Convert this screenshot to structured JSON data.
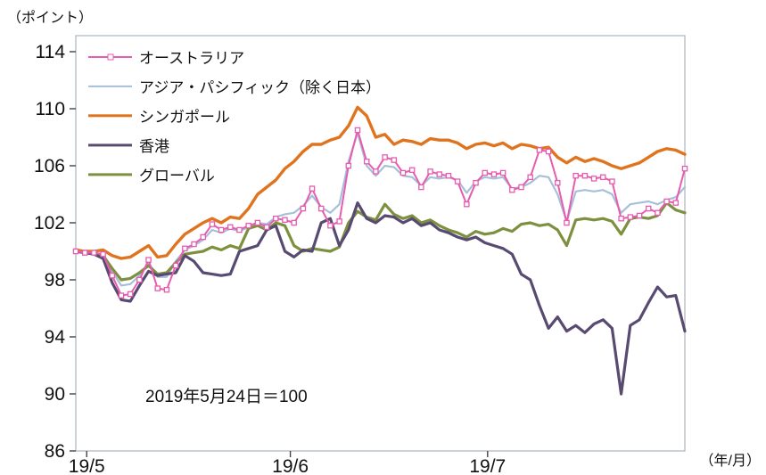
{
  "chart_data": {
    "type": "line",
    "title": "",
    "ylabel_unit": "（ポイント）",
    "xlabel_unit": "（年/月）",
    "annotation": "2019年5月24日＝100",
    "ylim": [
      86,
      114
    ],
    "ytick_step": 4,
    "grid": false,
    "legend_position": "top-left-inside",
    "frame_color": "#a9b3bd",
    "x_ticks": [
      {
        "label": "19/5",
        "i": 1.2
      },
      {
        "label": "19/6",
        "i": 23.6
      },
      {
        "label": "19/7",
        "i": 45.3
      }
    ],
    "series": [
      {
        "key": "australia",
        "name": "オーストラリア",
        "color": "#e65caf",
        "width": 2,
        "marker": "square",
        "values": [
          100.0,
          99.9,
          99.9,
          99.8,
          98.3,
          96.9,
          97.0,
          98.0,
          99.4,
          97.4,
          97.3,
          99.0,
          100.2,
          100.5,
          101.0,
          101.9,
          101.5,
          101.7,
          101.5,
          101.8,
          102.0,
          101.7,
          102.3,
          102.2,
          102.0,
          103.0,
          104.4,
          103.0,
          101.8,
          102.1,
          106.0,
          108.5,
          106.3,
          105.6,
          106.6,
          106.4,
          105.5,
          105.7,
          104.5,
          105.6,
          105.4,
          105.3,
          104.9,
          103.3,
          104.8,
          105.5,
          105.4,
          105.5,
          104.3,
          104.5,
          105.2,
          107.1,
          107.0,
          104.8,
          102.0,
          105.3,
          105.3,
          105.1,
          105.2,
          104.9,
          102.3,
          102.4,
          102.5,
          103.0,
          102.7,
          103.5,
          103.4,
          105.8
        ]
      },
      {
        "key": "asia-pacific-ex-japan",
        "name": "アジア・パシフィック（除く日本）",
        "color": "#a6c0da",
        "width": 2.2,
        "marker": "none",
        "values": [
          100.0,
          99.9,
          99.9,
          99.7,
          98.6,
          97.6,
          97.7,
          98.3,
          99.2,
          98.2,
          98.2,
          99.3,
          100.1,
          100.4,
          100.8,
          101.5,
          101.3,
          101.6,
          101.4,
          101.7,
          102.0,
          101.9,
          102.4,
          102.6,
          102.7,
          103.2,
          103.9,
          103.1,
          102.7,
          103.3,
          106.3,
          108.3,
          106.0,
          105.3,
          106.0,
          105.9,
          105.3,
          105.2,
          104.6,
          105.2,
          105.1,
          105.2,
          105.0,
          104.1,
          104.9,
          105.2,
          105.1,
          105.2,
          104.4,
          104.5,
          104.8,
          105.3,
          105.2,
          104.0,
          102.1,
          104.2,
          104.3,
          104.2,
          104.3,
          104.0,
          102.7,
          103.3,
          103.4,
          103.5,
          103.3,
          103.6,
          103.8,
          104.5
        ]
      },
      {
        "key": "singapore",
        "name": "シンガポール",
        "color": "#e0731d",
        "width": 3.4,
        "marker": "none",
        "values": [
          100.1,
          100.0,
          100.0,
          100.1,
          99.7,
          99.5,
          99.6,
          100.0,
          100.4,
          99.6,
          99.7,
          100.5,
          101.2,
          101.6,
          102.0,
          102.3,
          102.0,
          102.4,
          102.3,
          103.0,
          104.0,
          104.5,
          105.0,
          105.8,
          106.3,
          107.0,
          107.5,
          107.5,
          107.8,
          108.0,
          108.8,
          110.1,
          109.5,
          108.0,
          108.2,
          107.5,
          107.8,
          107.7,
          107.5,
          107.9,
          107.8,
          107.8,
          107.6,
          107.2,
          107.5,
          107.6,
          107.4,
          107.6,
          107.2,
          107.5,
          107.4,
          107.2,
          107.3,
          106.6,
          106.2,
          106.6,
          106.3,
          106.5,
          106.3,
          106.0,
          105.8,
          106.0,
          106.2,
          106.6,
          107.0,
          107.2,
          107.1,
          106.8
        ]
      },
      {
        "key": "hong-kong",
        "name": "香港",
        "color": "#584a70",
        "width": 3.2,
        "marker": "none",
        "values": [
          100.0,
          99.9,
          99.8,
          99.5,
          97.8,
          96.6,
          96.5,
          97.6,
          98.6,
          98.3,
          98.4,
          98.5,
          99.7,
          99.3,
          98.5,
          98.4,
          98.3,
          98.4,
          100.0,
          100.2,
          100.4,
          101.5,
          101.8,
          100.0,
          99.6,
          100.1,
          100.0,
          102.0,
          102.3,
          100.4,
          101.5,
          103.4,
          102.3,
          102.0,
          102.5,
          102.4,
          102.0,
          102.3,
          101.8,
          102.0,
          101.5,
          101.3,
          101.0,
          100.8,
          101.0,
          100.6,
          100.4,
          100.2,
          99.8,
          98.4,
          98.0,
          96.2,
          94.6,
          95.4,
          94.4,
          94.8,
          94.3,
          94.9,
          95.2,
          94.6,
          90.0,
          94.8,
          95.2,
          96.4,
          97.5,
          96.8,
          96.9,
          94.4
        ]
      },
      {
        "key": "global",
        "name": "グローバル",
        "color": "#7d9040",
        "width": 3.2,
        "marker": "none",
        "values": [
          100.0,
          99.9,
          99.9,
          99.7,
          98.8,
          98.0,
          98.1,
          98.5,
          99.0,
          98.4,
          98.5,
          99.2,
          99.8,
          99.9,
          100.0,
          100.3,
          100.1,
          100.4,
          100.2,
          101.6,
          101.8,
          101.5,
          102.0,
          101.8,
          100.4,
          100.0,
          100.2,
          100.1,
          100.0,
          100.3,
          102.0,
          102.8,
          102.4,
          102.2,
          103.3,
          102.6,
          102.3,
          102.5,
          102.0,
          102.2,
          101.8,
          101.5,
          101.3,
          101.0,
          101.4,
          101.2,
          101.3,
          101.6,
          101.4,
          101.9,
          102.0,
          101.8,
          101.9,
          101.5,
          100.4,
          102.2,
          102.3,
          102.2,
          102.3,
          102.1,
          101.2,
          102.3,
          102.4,
          102.3,
          102.5,
          103.4,
          102.9,
          102.7
        ]
      }
    ]
  }
}
